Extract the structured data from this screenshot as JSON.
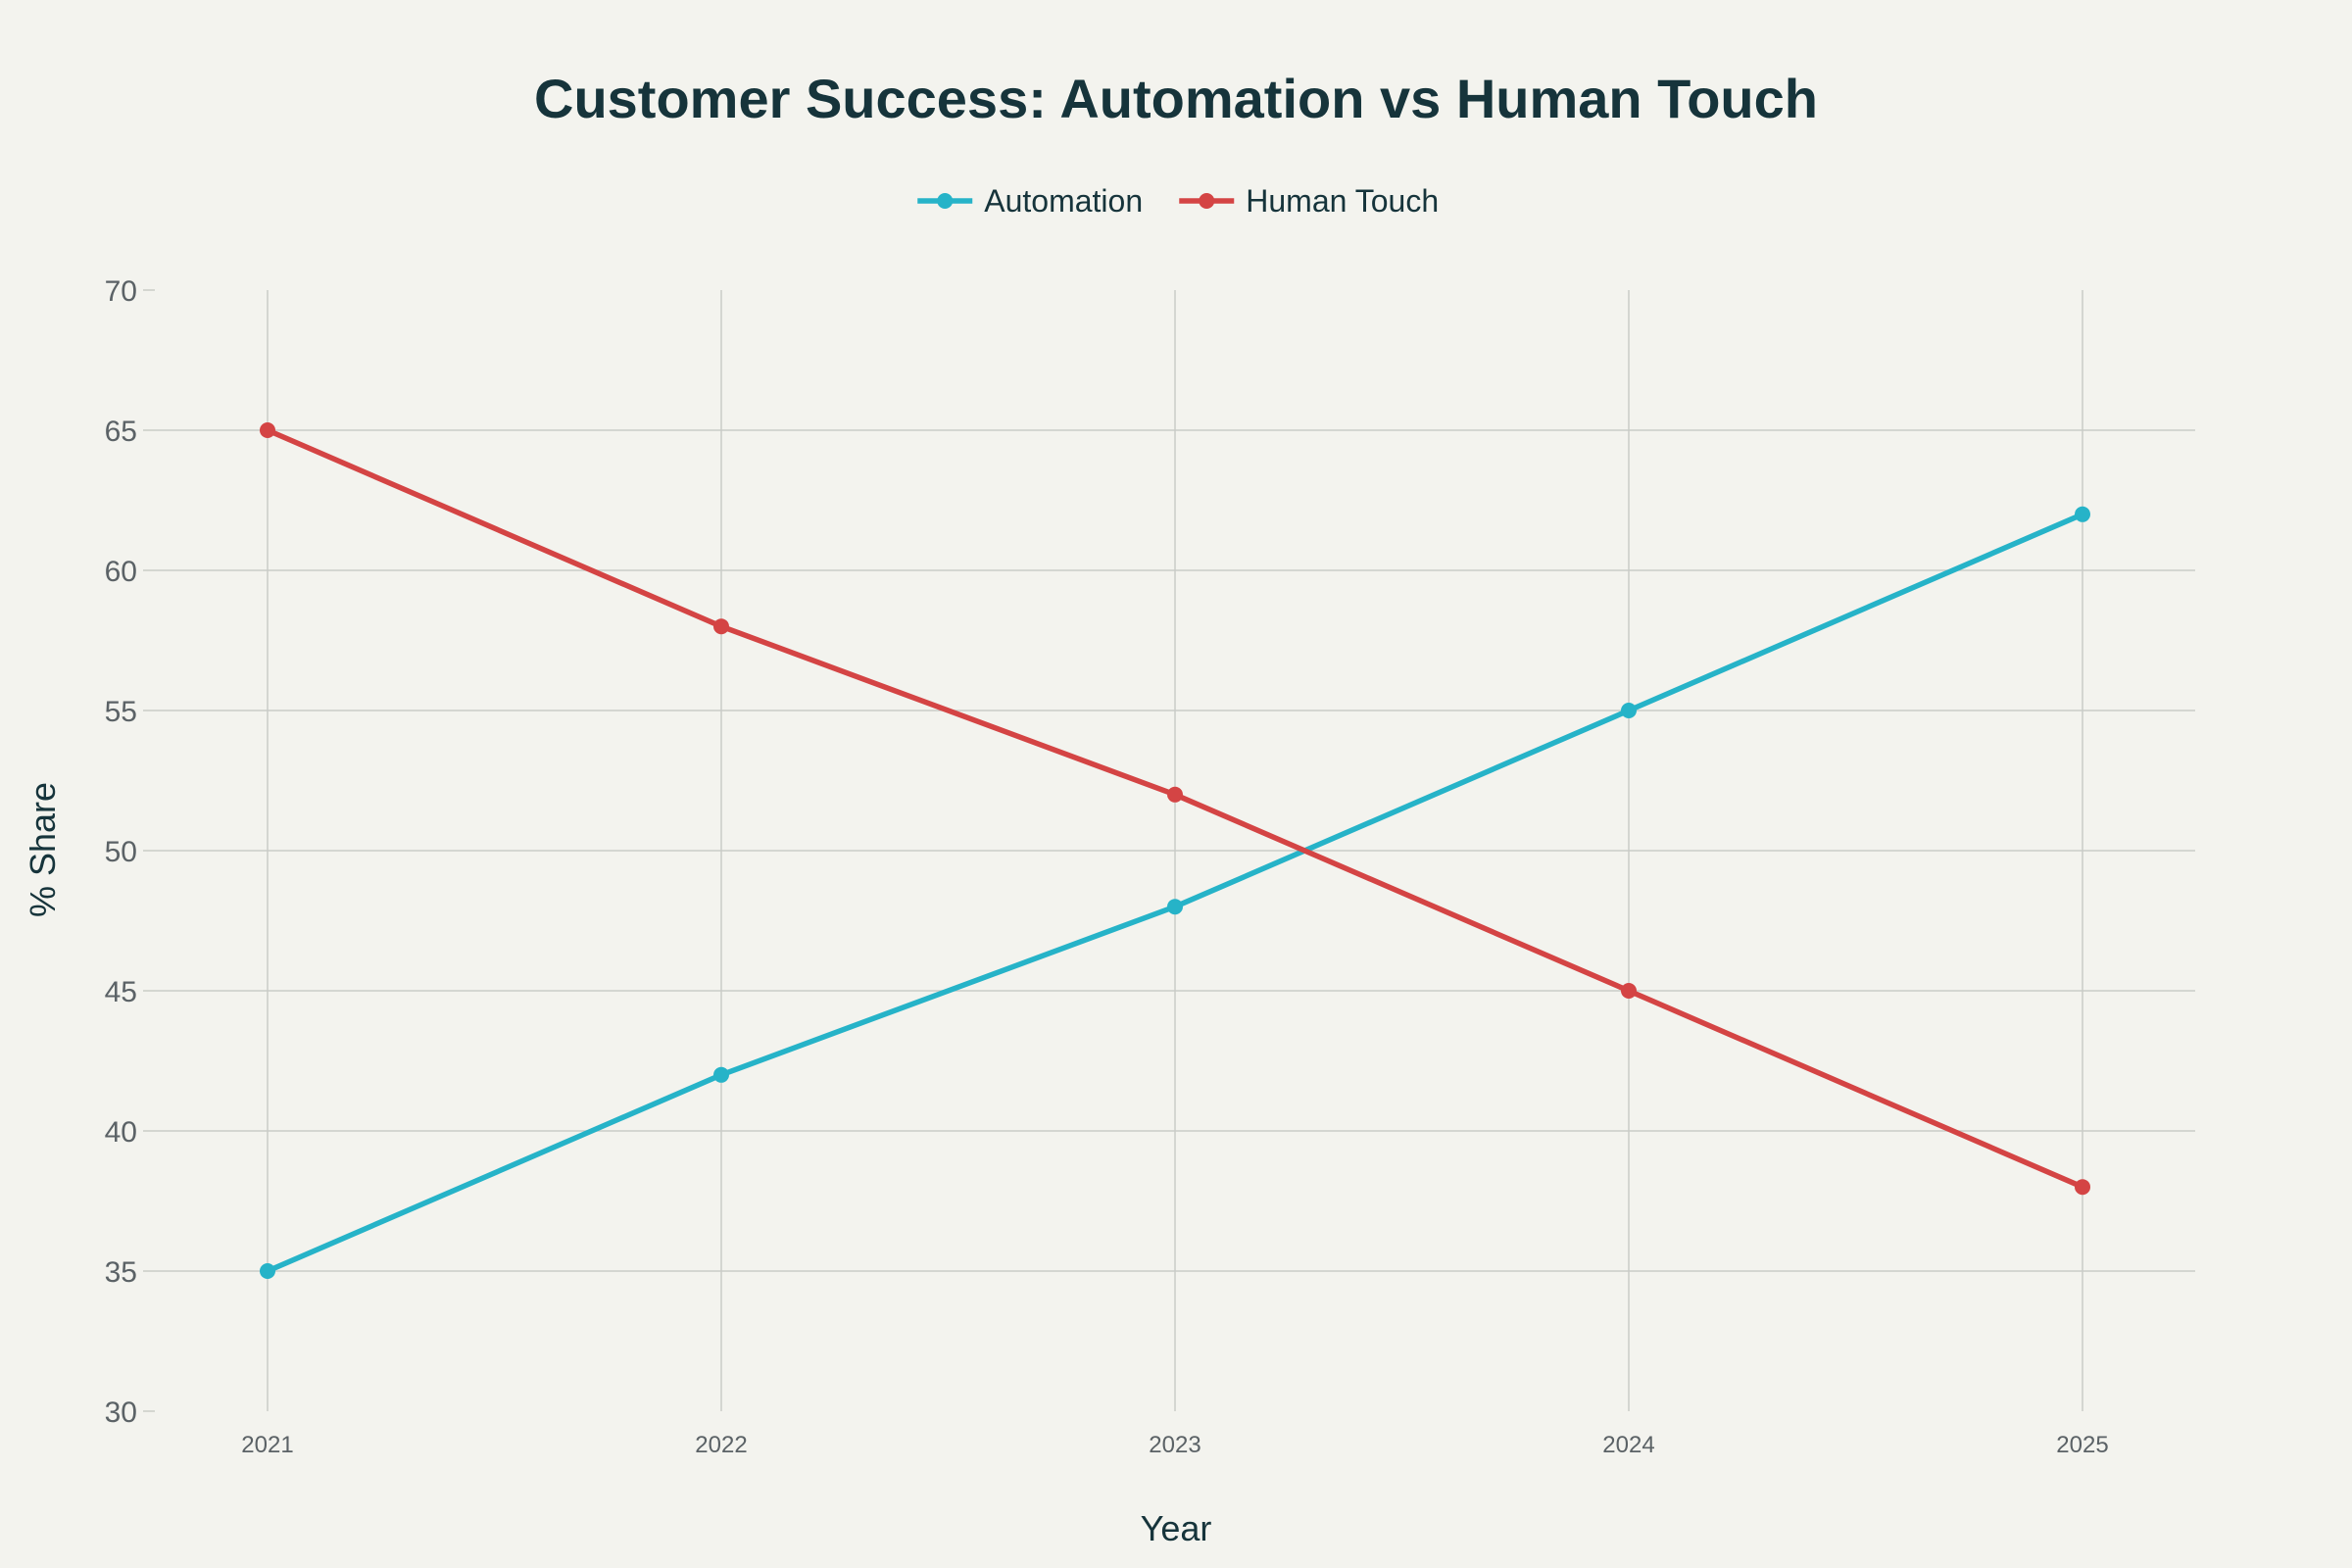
{
  "chart_data": {
    "type": "line",
    "title": "Customer Success: Automation vs Human Touch",
    "xlabel": "Year",
    "ylabel": "% Share",
    "categories": [
      "2021",
      "2022",
      "2023",
      "2024",
      "2025"
    ],
    "ylim": [
      30,
      70
    ],
    "yticks": [
      30,
      35,
      40,
      45,
      50,
      55,
      60,
      65,
      70
    ],
    "grid": true,
    "legend_position": "top-center",
    "series": [
      {
        "name": "Automation",
        "color": "#26b3c8",
        "values": [
          35,
          42,
          48,
          55,
          62
        ]
      },
      {
        "name": "Human Touch",
        "color": "#d44444",
        "values": [
          65,
          58,
          52,
          45,
          38
        ]
      }
    ]
  }
}
